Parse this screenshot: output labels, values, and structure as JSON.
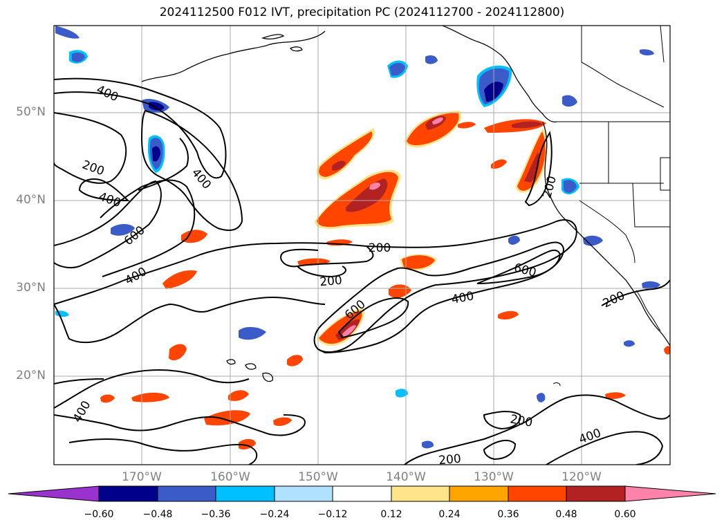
{
  "title": "2024112500 F012 IVT, precipitation PC (2024112700 - 2024112800)",
  "latitude_labels": [
    "50°N",
    "40°N",
    "30°N",
    "20°N"
  ],
  "longitude_labels": [
    "170°W",
    "160°W",
    "150°W",
    "140°W",
    "130°W",
    "120°W"
  ],
  "colorbar": {
    "tick_labels": [
      "−0.60",
      "−0.48",
      "−0.36",
      "−0.24",
      "−0.12",
      "0.12",
      "0.24",
      "0.36",
      "0.48",
      "0.60"
    ],
    "colors": [
      "#9a32cd",
      "#00008b",
      "#3a5bc8",
      "#00bfff",
      "#b0e2ff",
      "#ffffff",
      "#ffe48a",
      "#ffa500",
      "#ff4500",
      "#b22222",
      "#ff82ab"
    ]
  },
  "ivt_contour_labels": [
    "400",
    "200",
    "400",
    "400",
    "600",
    "400",
    "200",
    "200",
    "600",
    "400",
    "200",
    "600",
    "200",
    "400",
    "200",
    "200",
    "400"
  ],
  "colors": {
    "contour": "#000000",
    "gridline": "#aaaaaa",
    "coastline": "#000000"
  }
}
